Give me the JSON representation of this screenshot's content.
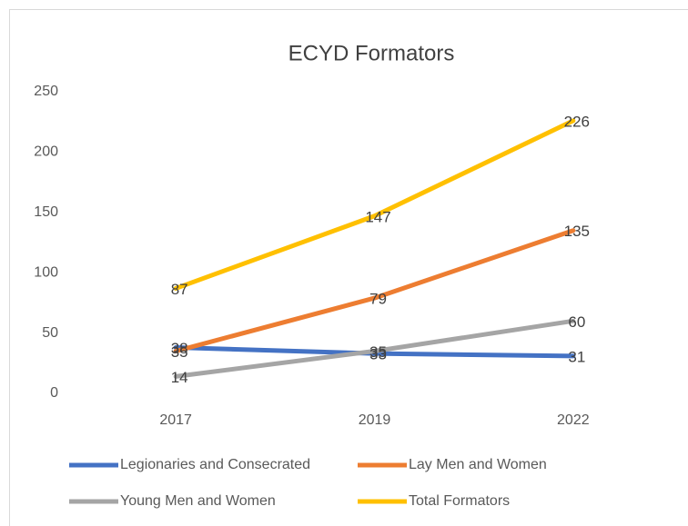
{
  "chart_data": {
    "type": "line",
    "title": "ECYD Formators",
    "categories": [
      "2017",
      "2019",
      "2022"
    ],
    "series": [
      {
        "name": "Legionaries and Consecrated",
        "color": "#4472c4",
        "values": [
          38,
          33,
          31
        ]
      },
      {
        "name": "Lay Men and Women",
        "color": "#ed7d31",
        "values": [
          35,
          79,
          135
        ]
      },
      {
        "name": "Young Men and Women",
        "color": "#a5a5a5",
        "values": [
          14,
          35,
          60
        ]
      },
      {
        "name": "Total Formators",
        "color": "#ffc000",
        "values": [
          87,
          147,
          226
        ]
      }
    ],
    "ylim": [
      0,
      250
    ],
    "yticks": [
      0,
      50,
      100,
      150,
      200,
      250
    ],
    "grid": false,
    "legend": "bottom"
  }
}
